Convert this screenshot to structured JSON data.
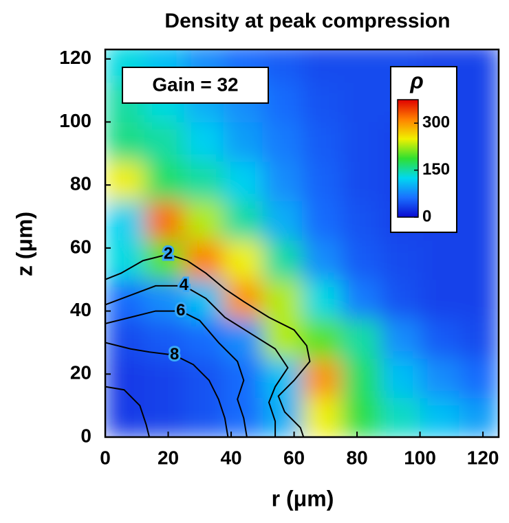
{
  "chart_data": {
    "type": "heatmap",
    "title": "Density at peak compression",
    "x_label": "r (μm)",
    "y_label": "z (μm)",
    "annotation": "Gain = 32",
    "colorbar_label": "ρ",
    "xlim": [
      0,
      125
    ],
    "ylim": [
      0,
      123
    ],
    "xticks": [
      0,
      20,
      40,
      60,
      80,
      100,
      120
    ],
    "yticks": [
      0,
      20,
      40,
      60,
      80,
      100,
      120
    ],
    "clim": [
      0,
      375
    ],
    "cticks": [
      0,
      150,
      300
    ],
    "colormap": [
      "#0a0ad0",
      "#1a70ff",
      "#00d8f0",
      "#30e030",
      "#f0f000",
      "#ff8000",
      "#e00000"
    ],
    "r": [
      6.25,
      18.75,
      31.25,
      43.75,
      56.25,
      68.75,
      81.25,
      93.75,
      106.25,
      118.75
    ],
    "z": [
      6.25,
      18.75,
      31.25,
      43.75,
      56.25,
      68.75,
      81.25,
      93.75,
      106.25,
      118.75
    ],
    "density": [
      [
        30,
        35,
        45,
        60,
        100,
        250,
        180,
        140,
        110,
        90
      ],
      [
        30,
        35,
        45,
        60,
        110,
        300,
        170,
        110,
        80,
        60
      ],
      [
        40,
        50,
        60,
        80,
        230,
        200,
        150,
        80,
        50,
        40
      ],
      [
        60,
        80,
        110,
        300,
        230,
        130,
        70,
        45,
        35,
        35
      ],
      [
        130,
        200,
        310,
        250,
        150,
        80,
        50,
        40,
        35,
        35
      ],
      [
        120,
        320,
        230,
        150,
        100,
        60,
        45,
        35,
        35,
        35
      ],
      [
        250,
        170,
        150,
        120,
        80,
        55,
        40,
        35,
        35,
        35
      ],
      [
        160,
        150,
        120,
        90,
        70,
        50,
        40,
        35,
        35,
        35
      ],
      [
        150,
        130,
        100,
        80,
        60,
        45,
        40,
        40,
        35,
        35
      ],
      [
        130,
        110,
        80,
        60,
        50,
        40,
        40,
        40,
        35,
        35
      ]
    ],
    "contours": [
      {
        "level": 2,
        "r": [
          0,
          5,
          12,
          20,
          26,
          32,
          38,
          44,
          52,
          60,
          64,
          65,
          60,
          55,
          57,
          62,
          63
        ],
        "z": [
          50,
          52,
          56,
          58,
          56,
          52,
          47,
          43,
          38,
          34,
          29,
          24,
          18,
          13,
          8,
          3,
          0
        ]
      },
      {
        "level": 4,
        "r": [
          0,
          8,
          16,
          25,
          32,
          38,
          46,
          54,
          58,
          54,
          52,
          54,
          54
        ],
        "z": [
          42,
          45,
          48,
          48,
          44,
          38,
          33,
          28,
          22,
          16,
          11,
          5,
          0
        ]
      },
      {
        "level": 6,
        "r": [
          0,
          8,
          16,
          24,
          30,
          36,
          42,
          44,
          42,
          44,
          45
        ],
        "z": [
          36,
          38,
          40,
          40,
          37,
          30,
          24,
          18,
          12,
          6,
          0
        ]
      },
      {
        "level": 8,
        "r": [
          0,
          8,
          14,
          22,
          28,
          33,
          36,
          38,
          39
        ],
        "z": [
          30,
          28,
          27,
          26,
          23,
          18,
          12,
          6,
          0
        ]
      },
      {
        "r": [
          0,
          6,
          11,
          13,
          14
        ],
        "z": [
          16,
          15,
          10,
          4,
          0
        ]
      }
    ]
  }
}
